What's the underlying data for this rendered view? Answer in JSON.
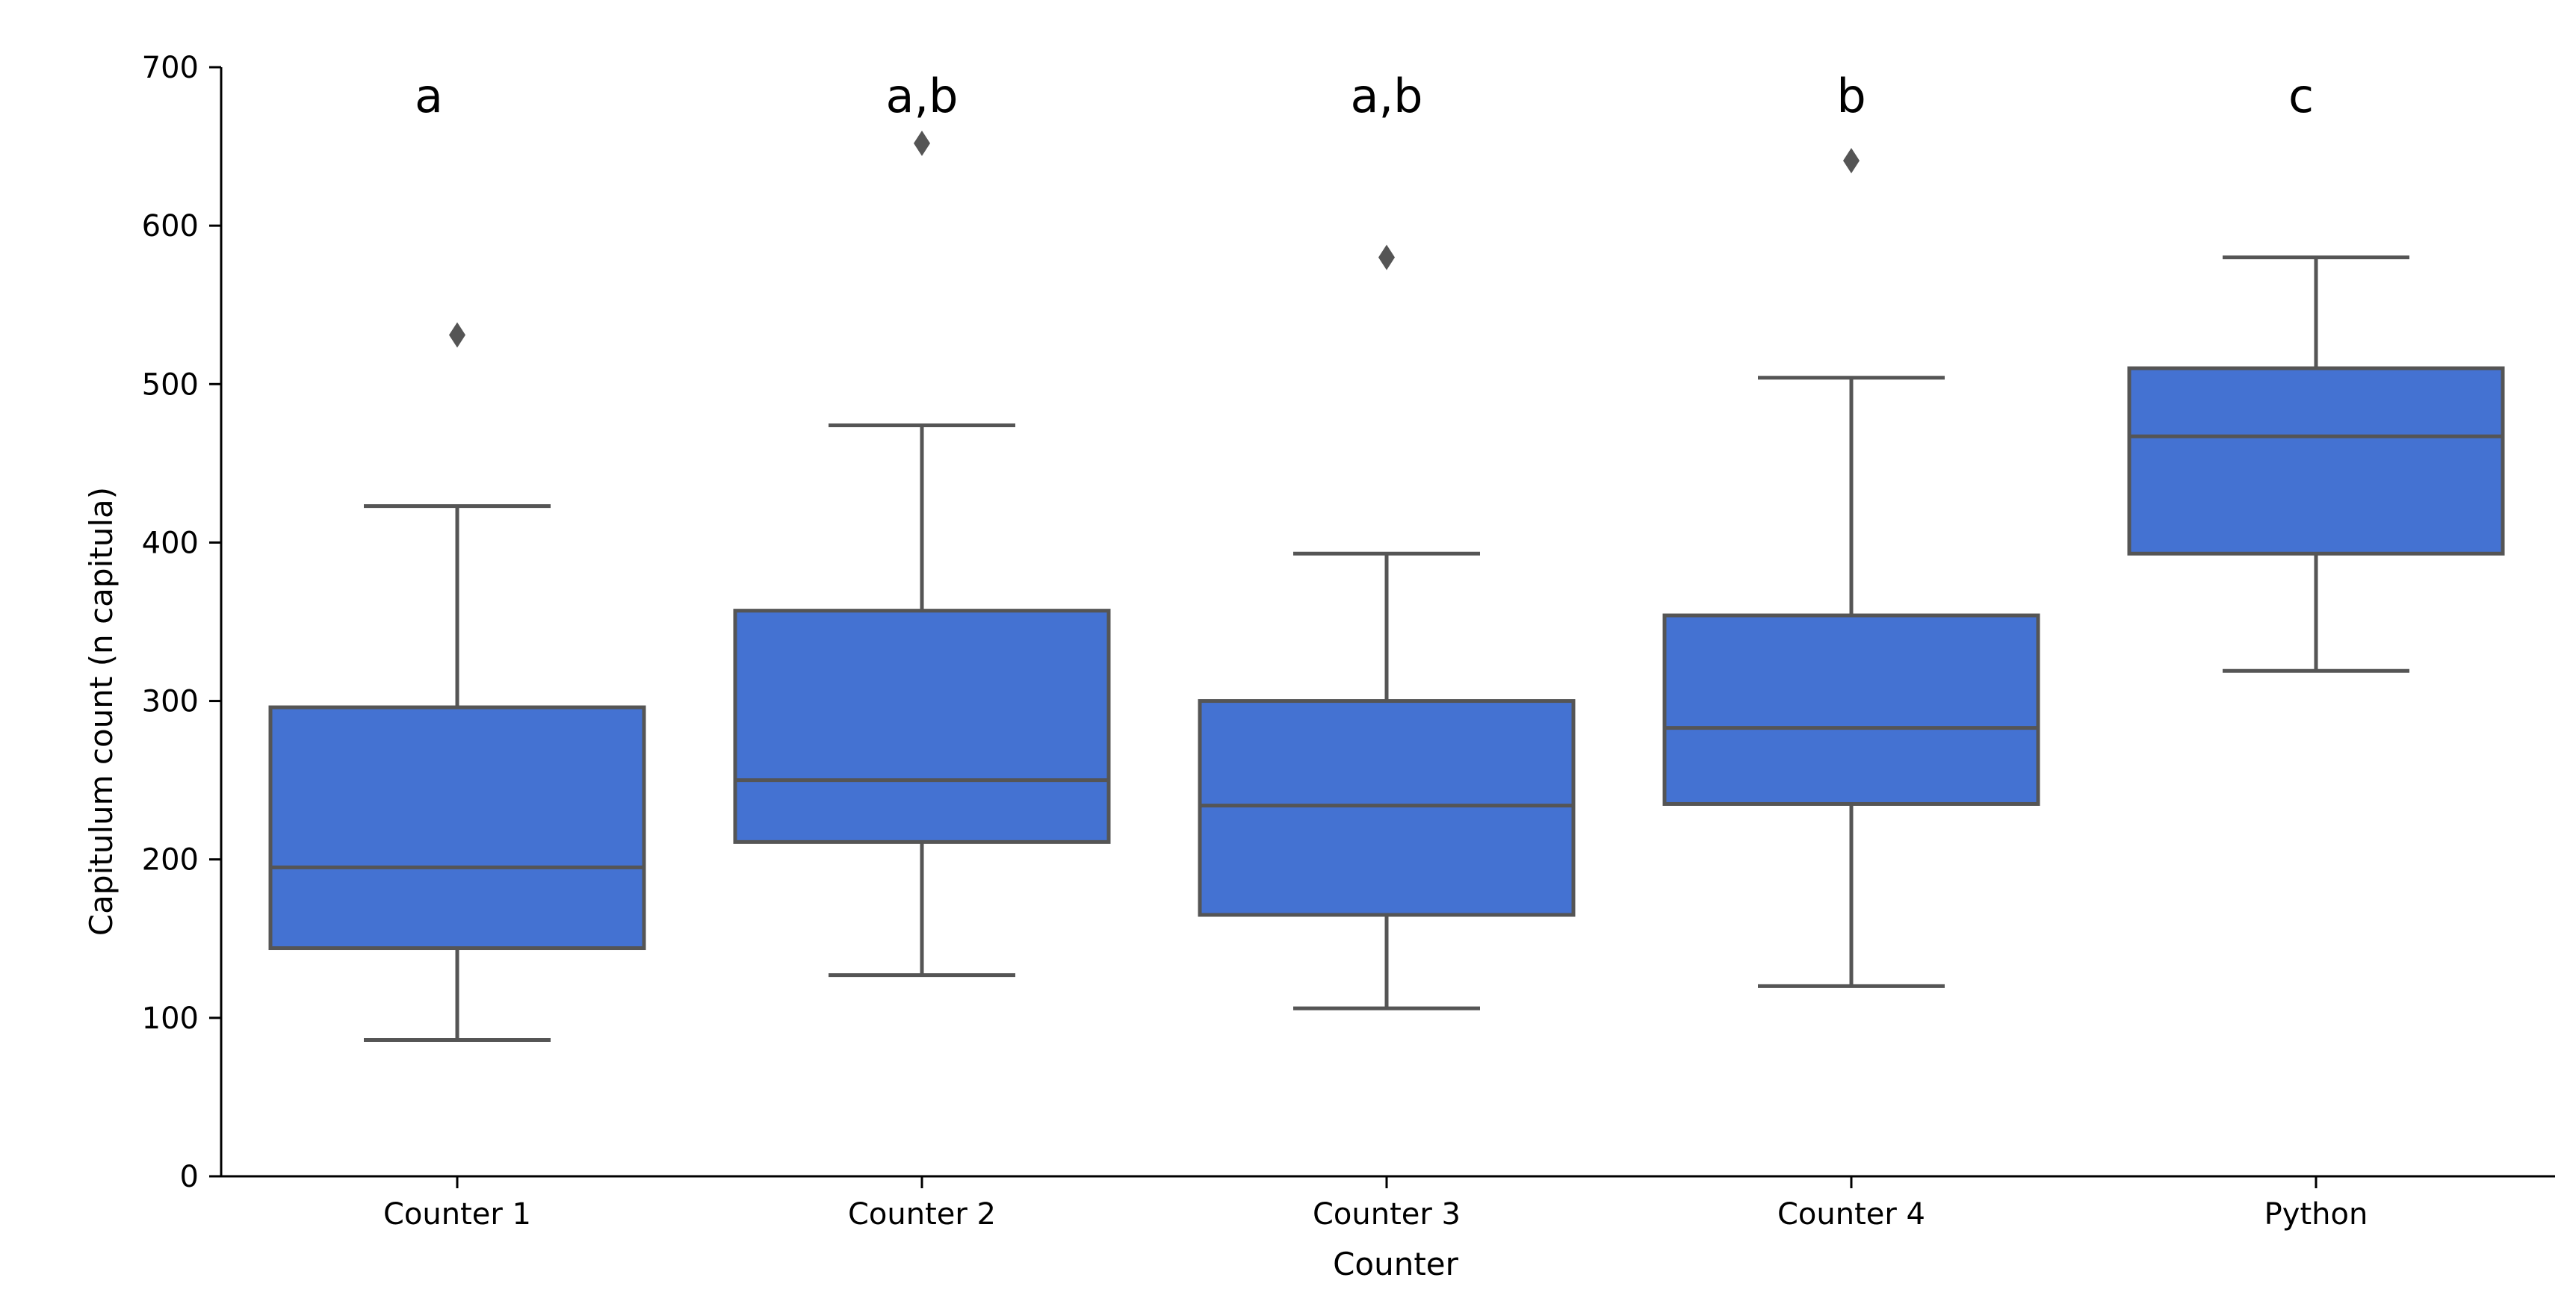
{
  "colors": {
    "box_fill": "#4472d2",
    "box_stroke": "#555555",
    "axis": "#000000",
    "outlier": "#555555"
  },
  "chart_data": {
    "type": "box",
    "title": "",
    "xlabel": "Counter",
    "ylabel": "Capitulum count (n capitula)",
    "ylim": [
      0,
      700
    ],
    "yticks": [
      0,
      100,
      200,
      300,
      400,
      500,
      600,
      700
    ],
    "ytick_labels": [
      "0",
      "100",
      "200",
      "300",
      "400",
      "500",
      "600",
      "700"
    ],
    "grid": false,
    "categories": [
      "Counter 1",
      "Counter 2",
      "Counter 3",
      "Counter 4",
      "Python"
    ],
    "boxes": [
      {
        "category": "Counter 1",
        "whisker_low": 86,
        "q1": 144,
        "median": 195,
        "q3": 296,
        "whisker_high": 423,
        "outliers": [
          531
        ],
        "group_label": "a"
      },
      {
        "category": "Counter 2",
        "whisker_low": 127,
        "q1": 211,
        "median": 250,
        "q3": 357,
        "whisker_high": 474,
        "outliers": [
          652
        ],
        "group_label": "a,b"
      },
      {
        "category": "Counter 3",
        "whisker_low": 106,
        "q1": 165,
        "median": 234,
        "q3": 300,
        "whisker_high": 393,
        "outliers": [
          580
        ],
        "group_label": "a,b"
      },
      {
        "category": "Counter 4",
        "whisker_low": 120,
        "q1": 235,
        "median": 283,
        "q3": 354,
        "whisker_high": 504,
        "outliers": [
          641
        ],
        "group_label": "b"
      },
      {
        "category": "Python",
        "whisker_low": 319,
        "q1": 393,
        "median": 467,
        "q3": 510,
        "whisker_high": 580,
        "outliers": [],
        "group_label": "c"
      }
    ]
  }
}
